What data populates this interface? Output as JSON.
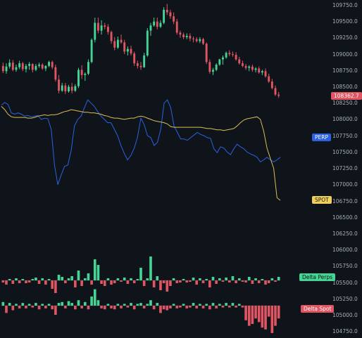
{
  "chart_data": {
    "type": "candlestick",
    "price_axis": {
      "ticks": [
        "109750.0",
        "109500.0",
        "109250.0",
        "109000.0",
        "108750.0",
        "108500.0",
        "108250.0",
        "108000.0",
        "107750.0",
        "107500.0",
        "107250.0",
        "107000.0",
        "106750.0",
        "106500.0",
        "106250.0",
        "106000.0",
        "105750.0",
        "105500.0",
        "105250.0",
        "105000.0",
        "104750.0"
      ],
      "range": [
        104650,
        109830
      ]
    },
    "last_price": "108362.7",
    "colors": {
      "up": "#45d494",
      "down": "#e05561",
      "perp": "#2b61e0",
      "spot": "#d8be53",
      "background": "#0f141b"
    },
    "candles": [
      [
        108820,
        108870,
        108710,
        108740
      ],
      [
        108740,
        108860,
        108700,
        108810
      ],
      [
        108810,
        108920,
        108780,
        108870
      ],
      [
        108870,
        108910,
        108740,
        108760
      ],
      [
        108760,
        108840,
        108730,
        108800
      ],
      [
        108800,
        108900,
        108770,
        108860
      ],
      [
        108860,
        108880,
        108740,
        108770
      ],
      [
        108770,
        108850,
        108720,
        108820
      ],
      [
        108820,
        108880,
        108760,
        108850
      ],
      [
        108850,
        108860,
        108720,
        108760
      ],
      [
        108760,
        108850,
        108740,
        108820
      ],
      [
        108820,
        108870,
        108790,
        108840
      ],
      [
        108840,
        108860,
        108760,
        108780
      ],
      [
        108780,
        108830,
        108740,
        108820
      ],
      [
        108820,
        108900,
        108800,
        108880
      ],
      [
        108880,
        108900,
        108770,
        108800
      ],
      [
        108800,
        108840,
        108580,
        108610
      ],
      [
        108610,
        108680,
        108400,
        108440
      ],
      [
        108440,
        108560,
        108420,
        108520
      ],
      [
        108520,
        108560,
        108390,
        108430
      ],
      [
        108430,
        108530,
        108410,
        108500
      ],
      [
        108500,
        108560,
        108400,
        108440
      ],
      [
        108440,
        108540,
        108420,
        108510
      ],
      [
        108510,
        108790,
        108480,
        108760
      ],
      [
        108760,
        108830,
        108620,
        108680
      ],
      [
        108680,
        108720,
        108590,
        108700
      ],
      [
        108700,
        108920,
        108680,
        108880
      ],
      [
        108880,
        109240,
        108860,
        109220
      ],
      [
        109220,
        109560,
        109180,
        109480
      ],
      [
        109480,
        109560,
        109320,
        109360
      ],
      [
        109360,
        109520,
        109300,
        109440
      ],
      [
        109440,
        109480,
        109380,
        109420
      ],
      [
        109420,
        109460,
        109300,
        109340
      ],
      [
        109340,
        109360,
        109160,
        109200
      ],
      [
        109200,
        109260,
        109060,
        109100
      ],
      [
        109100,
        109270,
        109080,
        109220
      ],
      [
        109220,
        109300,
        109160,
        109180
      ],
      [
        109180,
        109220,
        109000,
        109040
      ],
      [
        109040,
        109120,
        108980,
        109080
      ],
      [
        109080,
        109130,
        108980,
        109010
      ],
      [
        109010,
        109040,
        108820,
        108860
      ],
      [
        108860,
        108900,
        108780,
        108820
      ],
      [
        108820,
        108880,
        108760,
        108800
      ],
      [
        108800,
        109020,
        108790,
        108980
      ],
      [
        108980,
        109400,
        108960,
        109360
      ],
      [
        109360,
        109480,
        109280,
        109440
      ],
      [
        109440,
        109560,
        109420,
        109500
      ],
      [
        109500,
        109560,
        109380,
        109420
      ],
      [
        109420,
        109520,
        109400,
        109480
      ],
      [
        109480,
        109720,
        109460,
        109680
      ],
      [
        109680,
        109770,
        109600,
        109640
      ],
      [
        109640,
        109680,
        109540,
        109580
      ],
      [
        109580,
        109640,
        109460,
        109500
      ],
      [
        109500,
        109540,
        109300,
        109330
      ],
      [
        109330,
        109360,
        109250,
        109300
      ],
      [
        109300,
        109330,
        109230,
        109260
      ],
      [
        109260,
        109320,
        109230,
        109280
      ],
      [
        109280,
        109320,
        109200,
        109240
      ],
      [
        109240,
        109270,
        109180,
        109230
      ],
      [
        109230,
        109260,
        109180,
        109200
      ],
      [
        109200,
        109260,
        109170,
        109230
      ],
      [
        109230,
        109250,
        109140,
        109160
      ],
      [
        109160,
        109180,
        108850,
        108880
      ],
      [
        108880,
        108920,
        108700,
        108730
      ],
      [
        108730,
        108790,
        108680,
        108760
      ],
      [
        108760,
        108860,
        108740,
        108840
      ],
      [
        108840,
        108930,
        108820,
        108920
      ],
      [
        108920,
        108980,
        108840,
        108950
      ],
      [
        108950,
        109040,
        108930,
        109020
      ],
      [
        109020,
        109060,
        108970,
        109000
      ],
      [
        109000,
        109040,
        108960,
        108990
      ],
      [
        108990,
        109030,
        108900,
        108920
      ],
      [
        108920,
        108960,
        108840,
        108860
      ],
      [
        108860,
        108900,
        108800,
        108820
      ],
      [
        108820,
        108850,
        108760,
        108790
      ],
      [
        108790,
        108830,
        108740,
        108810
      ],
      [
        108810,
        108840,
        108730,
        108760
      ],
      [
        108760,
        108800,
        108720,
        108780
      ],
      [
        108780,
        108810,
        108700,
        108720
      ],
      [
        108720,
        108760,
        108680,
        108740
      ],
      [
        108740,
        108780,
        108640,
        108660
      ],
      [
        108660,
        108700,
        108560,
        108580
      ],
      [
        108580,
        108620,
        108460,
        108480
      ],
      [
        108480,
        108520,
        108360,
        108380
      ],
      [
        108380,
        108420,
        108330,
        108362.7
      ]
    ],
    "series": [
      {
        "name": "PERP",
        "values": [
          108220,
          108260,
          108230,
          108100,
          108080,
          108100,
          108080,
          108050,
          108060,
          108040,
          108050,
          108060,
          108000,
          108020,
          108010,
          107850,
          107300,
          107000,
          107150,
          107280,
          107300,
          107520,
          107900,
          108000,
          108050,
          108180,
          108300,
          108250,
          108200,
          108120,
          108050,
          108000,
          107950,
          107950,
          107850,
          107750,
          107600,
          107480,
          107380,
          107450,
          107560,
          107730,
          108020,
          107920,
          107750,
          107720,
          107600,
          107650,
          107850,
          108250,
          108300,
          108180,
          107900,
          107800,
          107700,
          107700,
          107680,
          107720,
          107760,
          107800,
          107770,
          107750,
          107720,
          107710,
          107550,
          107490,
          107580,
          107560,
          107500,
          107460,
          107550,
          107620,
          107580,
          107550,
          107500,
          107470,
          107450,
          107420,
          107350,
          107380,
          107420,
          107380,
          107350,
          107380,
          107420
        ]
      },
      {
        "name": "SPOT",
        "values": [
          108200,
          108150,
          108080,
          108040,
          108030,
          108030,
          108030,
          108030,
          108020,
          108020,
          108030,
          108050,
          108060,
          108070,
          108060,
          108070,
          108070,
          108080,
          108100,
          108120,
          108130,
          108150,
          108140,
          108130,
          108120,
          108110,
          108110,
          108100,
          108100,
          108090,
          108080,
          108060,
          108050,
          108030,
          108020,
          108020,
          108010,
          108000,
          108010,
          108020,
          108020,
          108040,
          108050,
          108040,
          108020,
          108000,
          107980,
          107970,
          107960,
          107950,
          107930,
          107890,
          107880,
          107880,
          107880,
          107880,
          107880,
          107880,
          107880,
          107880,
          107880,
          107870,
          107860,
          107860,
          107850,
          107840,
          107840,
          107830,
          107840,
          107850,
          107860,
          107900,
          107950,
          107990,
          108010,
          108020,
          108030,
          108040,
          108000,
          107820,
          107560,
          107400,
          107250,
          106800,
          106760
        ]
      }
    ],
    "delta_perps": [
      -3,
      -6,
      2,
      -5,
      3,
      -4,
      2,
      -4,
      -3,
      2,
      4,
      -5,
      3,
      -6,
      2,
      -12,
      -18,
      8,
      5,
      -4,
      3,
      6,
      -10,
      14,
      -8,
      3,
      10,
      -6,
      30,
      22,
      -5,
      -8,
      3,
      -6,
      -4,
      3,
      -2,
      4,
      -5,
      3,
      -4,
      2,
      18,
      -8,
      3,
      34,
      -10,
      6,
      -14,
      -4,
      -16,
      -8,
      3,
      -4,
      -3,
      2,
      -3,
      -2,
      4,
      -6,
      3,
      -4,
      2,
      -10,
      5,
      -5,
      3,
      -2,
      4,
      -3,
      6,
      -4,
      3,
      -2,
      -3,
      5,
      -5,
      3,
      -4,
      2,
      -6,
      -4,
      3,
      -2,
      5
    ],
    "delta_spot": [
      4,
      -8,
      3,
      -5,
      2,
      -3,
      3,
      -3,
      2,
      -2,
      3,
      -4,
      2,
      -3,
      2,
      -4,
      -10,
      3,
      4,
      -3,
      5,
      3,
      -4,
      6,
      -3,
      4,
      -4,
      10,
      18,
      6,
      -3,
      -4,
      2,
      -3,
      -4,
      2,
      -3,
      2,
      -2,
      3,
      -4,
      2,
      3,
      -3,
      2,
      6,
      -4,
      3,
      -8,
      -4,
      -5,
      -3,
      2,
      -3,
      -2,
      2,
      -3,
      -2,
      3,
      -3,
      2,
      -3,
      2,
      -4,
      3,
      -3,
      2,
      -2,
      3,
      -2,
      3,
      -2,
      2,
      -2,
      -16,
      -22,
      -20,
      -14,
      -18,
      -24,
      -26,
      -12,
      -30,
      -22,
      -14
    ],
    "labels": {
      "perp": "PERP",
      "spot": "SPOT",
      "delta_perps": "Delta Perps",
      "delta_spot": "Delta Spot"
    }
  }
}
